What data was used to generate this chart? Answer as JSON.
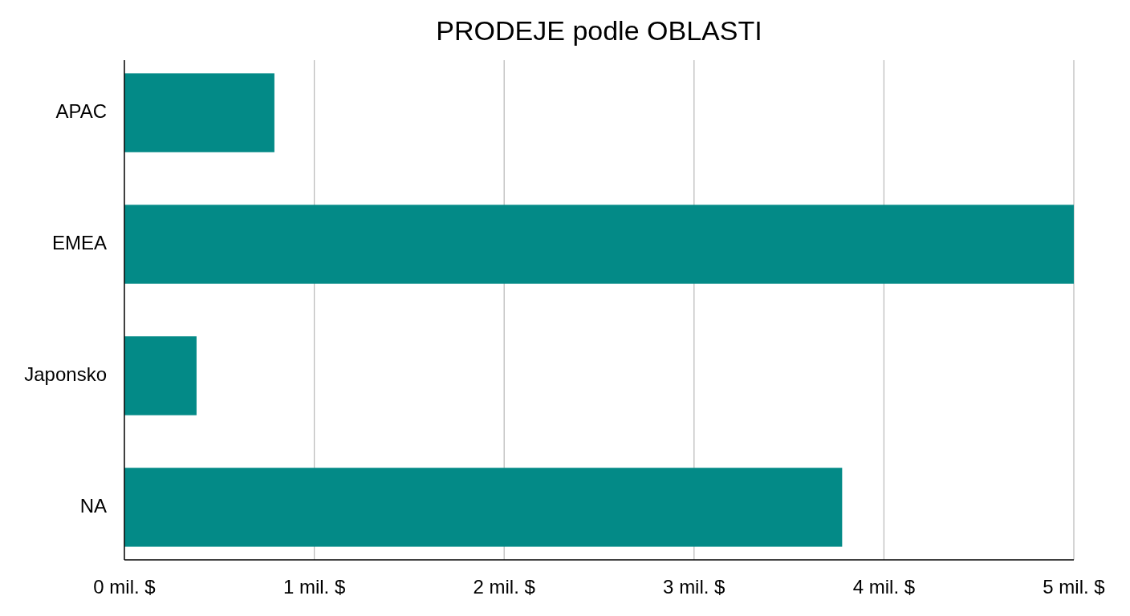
{
  "chart_data": {
    "type": "bar",
    "title": "PRODEJE podle OBLASTI",
    "orientation": "horizontal",
    "categories": [
      "APAC",
      "EMEA",
      "Japonsko",
      "NA"
    ],
    "values": [
      0.79,
      5.0,
      0.38,
      3.78
    ],
    "color": "#038a87",
    "xlim": [
      0,
      5
    ],
    "xticks": [
      {
        "value": 0,
        "label": "0 mil. $"
      },
      {
        "value": 1,
        "label": "1 mil. $"
      },
      {
        "value": 2,
        "label": "2 mil. $"
      },
      {
        "value": 3,
        "label": "3 mil. $"
      },
      {
        "value": 4,
        "label": "4 mil. $"
      },
      {
        "value": 5,
        "label": "5 mil. $"
      }
    ],
    "grid": "x"
  }
}
